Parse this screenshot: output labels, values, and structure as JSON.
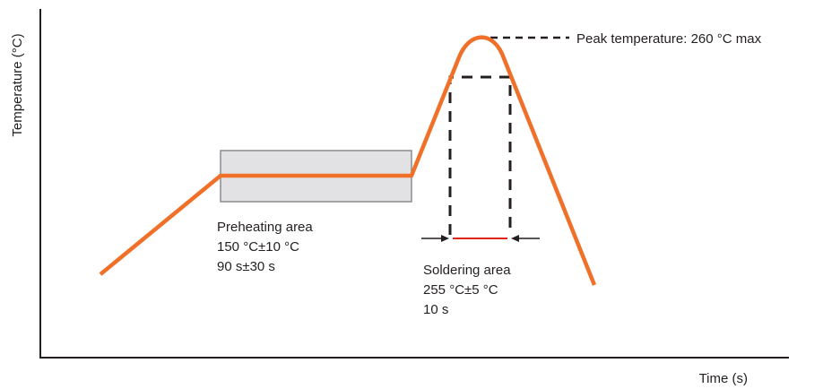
{
  "axes": {
    "y_label": "Temperature (°C)",
    "x_label": "Time (s)"
  },
  "preheat": {
    "title": "Preheating area",
    "temperature": "150 °C±10 °C",
    "duration": "90 s±30 s"
  },
  "soldering": {
    "title": "Soldering area",
    "temperature": "255 °C±5 °C",
    "duration": "10 s"
  },
  "peak": {
    "label": "Peak temperature: 260 °C max"
  },
  "colors": {
    "profile_curve": "#f07029",
    "preheat_box_fill": "#e2e2e4",
    "preheat_box_stroke": "#8c8c8c",
    "soldering_width_marker": "#e2231a",
    "annotation_lines": "#231f20"
  }
}
